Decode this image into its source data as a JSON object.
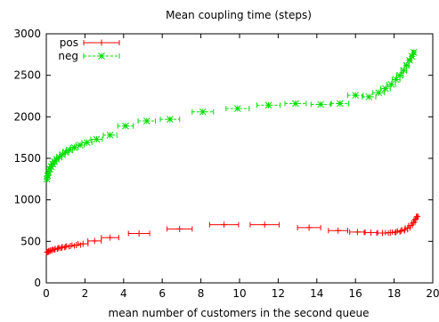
{
  "chart_data": {
    "type": "scatter",
    "title": "Mean coupling time (steps)",
    "xlabel": "mean number of customers in the second queue",
    "ylabel": "",
    "xlim": [
      0,
      20
    ],
    "ylim": [
      0,
      3000
    ],
    "xticks": [
      0,
      2,
      4,
      6,
      8,
      10,
      12,
      14,
      16,
      18,
      20
    ],
    "yticks": [
      0,
      500,
      1000,
      1500,
      2000,
      2500,
      3000
    ],
    "legend_position": "top-left",
    "grid": false,
    "error_bars": "horizontal",
    "series": [
      {
        "name": "pos",
        "color": "#ff0000",
        "line_style": "solid",
        "marker": "plus",
        "points": [
          {
            "x": 0.05,
            "y": 370,
            "xerr": 0.05
          },
          {
            "x": 0.12,
            "y": 378,
            "xerr": 0.06
          },
          {
            "x": 0.2,
            "y": 388,
            "xerr": 0.08
          },
          {
            "x": 0.3,
            "y": 395,
            "xerr": 0.1
          },
          {
            "x": 0.45,
            "y": 405,
            "xerr": 0.12
          },
          {
            "x": 0.6,
            "y": 415,
            "xerr": 0.14
          },
          {
            "x": 0.8,
            "y": 425,
            "xerr": 0.15
          },
          {
            "x": 1.0,
            "y": 435,
            "xerr": 0.17
          },
          {
            "x": 1.25,
            "y": 445,
            "xerr": 0.2
          },
          {
            "x": 1.55,
            "y": 455,
            "xerr": 0.22
          },
          {
            "x": 1.9,
            "y": 470,
            "xerr": 0.26
          },
          {
            "x": 2.5,
            "y": 505,
            "xerr": 0.35
          },
          {
            "x": 3.3,
            "y": 545,
            "xerr": 0.45
          },
          {
            "x": 4.8,
            "y": 595,
            "xerr": 0.55
          },
          {
            "x": 6.9,
            "y": 650,
            "xerr": 0.65
          },
          {
            "x": 9.2,
            "y": 700,
            "xerr": 0.75
          },
          {
            "x": 11.3,
            "y": 700,
            "xerr": 0.75
          },
          {
            "x": 13.6,
            "y": 665,
            "xerr": 0.6
          },
          {
            "x": 15.1,
            "y": 630,
            "xerr": 0.5
          },
          {
            "x": 16.1,
            "y": 612,
            "xerr": 0.4
          },
          {
            "x": 16.8,
            "y": 605,
            "xerr": 0.35
          },
          {
            "x": 17.4,
            "y": 600,
            "xerr": 0.3
          },
          {
            "x": 17.8,
            "y": 605,
            "xerr": 0.25
          },
          {
            "x": 18.1,
            "y": 612,
            "xerr": 0.2
          },
          {
            "x": 18.35,
            "y": 625,
            "xerr": 0.18
          },
          {
            "x": 18.55,
            "y": 640,
            "xerr": 0.15
          },
          {
            "x": 18.7,
            "y": 660,
            "xerr": 0.12
          },
          {
            "x": 18.85,
            "y": 690,
            "xerr": 0.1
          },
          {
            "x": 19.0,
            "y": 725,
            "xerr": 0.08
          },
          {
            "x": 19.1,
            "y": 765,
            "xerr": 0.07
          },
          {
            "x": 19.2,
            "y": 800,
            "xerr": 0.05
          }
        ]
      },
      {
        "name": "neg",
        "color": "#00dd00",
        "line_style": "dashed",
        "marker": "star",
        "points": [
          {
            "x": 0.03,
            "y": 1250,
            "xerr": 0.04
          },
          {
            "x": 0.07,
            "y": 1290,
            "xerr": 0.05
          },
          {
            "x": 0.12,
            "y": 1330,
            "xerr": 0.06
          },
          {
            "x": 0.18,
            "y": 1370,
            "xerr": 0.07
          },
          {
            "x": 0.25,
            "y": 1400,
            "xerr": 0.08
          },
          {
            "x": 0.33,
            "y": 1430,
            "xerr": 0.09
          },
          {
            "x": 0.42,
            "y": 1460,
            "xerr": 0.1
          },
          {
            "x": 0.53,
            "y": 1490,
            "xerr": 0.11
          },
          {
            "x": 0.67,
            "y": 1515,
            "xerr": 0.13
          },
          {
            "x": 0.83,
            "y": 1545,
            "xerr": 0.14
          },
          {
            "x": 1.0,
            "y": 1575,
            "xerr": 0.15
          },
          {
            "x": 1.2,
            "y": 1600,
            "xerr": 0.17
          },
          {
            "x": 1.45,
            "y": 1630,
            "xerr": 0.2
          },
          {
            "x": 1.75,
            "y": 1660,
            "xerr": 0.22
          },
          {
            "x": 2.1,
            "y": 1690,
            "xerr": 0.26
          },
          {
            "x": 2.6,
            "y": 1730,
            "xerr": 0.3
          },
          {
            "x": 3.3,
            "y": 1780,
            "xerr": 0.35
          },
          {
            "x": 4.1,
            "y": 1890,
            "xerr": 0.4
          },
          {
            "x": 5.2,
            "y": 1950,
            "xerr": 0.45
          },
          {
            "x": 6.4,
            "y": 1970,
            "xerr": 0.5
          },
          {
            "x": 8.1,
            "y": 2060,
            "xerr": 0.55
          },
          {
            "x": 9.9,
            "y": 2100,
            "xerr": 0.6
          },
          {
            "x": 11.5,
            "y": 2140,
            "xerr": 0.6
          },
          {
            "x": 12.9,
            "y": 2160,
            "xerr": 0.55
          },
          {
            "x": 14.2,
            "y": 2150,
            "xerr": 0.5
          },
          {
            "x": 15.2,
            "y": 2160,
            "xerr": 0.45
          },
          {
            "x": 16.0,
            "y": 2260,
            "xerr": 0.4
          },
          {
            "x": 16.7,
            "y": 2240,
            "xerr": 0.35
          },
          {
            "x": 17.2,
            "y": 2290,
            "xerr": 0.3
          },
          {
            "x": 17.55,
            "y": 2340,
            "xerr": 0.25
          },
          {
            "x": 17.85,
            "y": 2390,
            "xerr": 0.22
          },
          {
            "x": 18.1,
            "y": 2450,
            "xerr": 0.2
          },
          {
            "x": 18.3,
            "y": 2500,
            "xerr": 0.17
          },
          {
            "x": 18.5,
            "y": 2560,
            "xerr": 0.15
          },
          {
            "x": 18.65,
            "y": 2620,
            "xerr": 0.12
          },
          {
            "x": 18.8,
            "y": 2680,
            "xerr": 0.1
          },
          {
            "x": 18.92,
            "y": 2730,
            "xerr": 0.08
          },
          {
            "x": 19.02,
            "y": 2775,
            "xerr": 0.06
          }
        ]
      }
    ]
  }
}
